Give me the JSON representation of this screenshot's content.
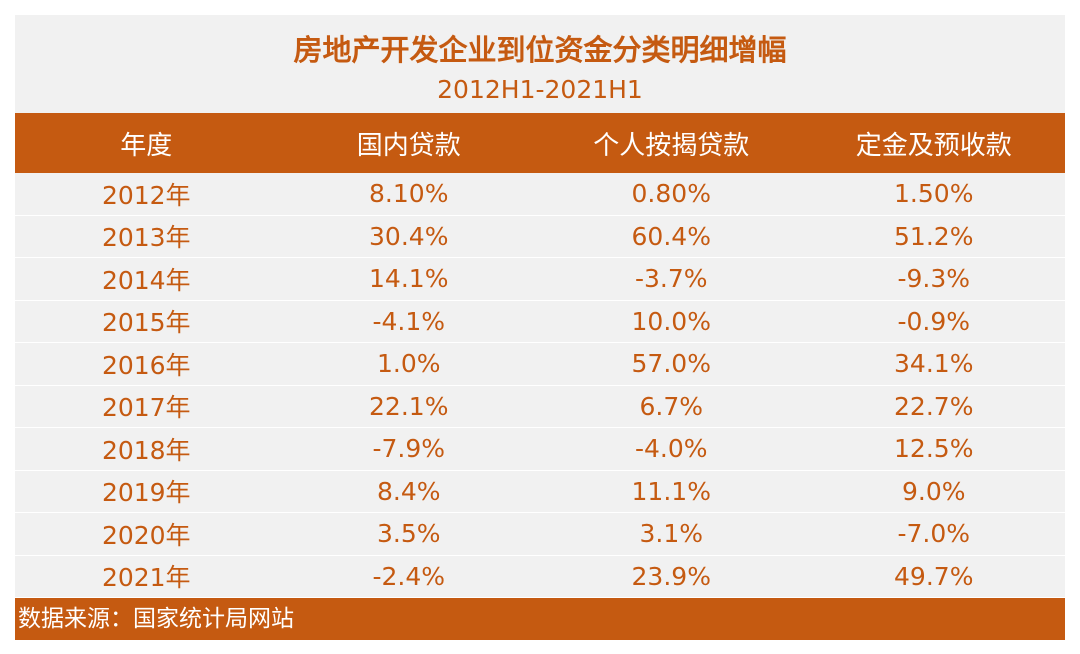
{
  "chart_data": {
    "type": "table",
    "title": "房地产开发企业到位资金分类明细增幅",
    "subtitle": "2012H1-2021H1",
    "columns": [
      "年度",
      "国内贷款",
      "个人按揭贷款",
      "定金及预收款"
    ],
    "rows": [
      [
        "2012年",
        "8.10%",
        "0.80%",
        "1.50%"
      ],
      [
        "2013年",
        "30.4%",
        "60.4%",
        "51.2%"
      ],
      [
        "2014年",
        "14.1%",
        "-3.7%",
        "-9.3%"
      ],
      [
        "2015年",
        "-4.1%",
        "10.0%",
        "-0.9%"
      ],
      [
        "2016年",
        "1.0%",
        "57.0%",
        "34.1%"
      ],
      [
        "2017年",
        "22.1%",
        "6.7%",
        "22.7%"
      ],
      [
        "2018年",
        "-7.9%",
        "-4.0%",
        "12.5%"
      ],
      [
        "2019年",
        "8.4%",
        "11.1%",
        "9.0%"
      ],
      [
        "2020年",
        "3.5%",
        "3.1%",
        "-7.0%"
      ],
      [
        "2021年",
        "-2.4%",
        "23.9%",
        "49.7%"
      ]
    ],
    "source": "数据来源：国家统计局网站",
    "colors": {
      "accent": "#c55a11",
      "background": "#f1f1f1"
    }
  }
}
